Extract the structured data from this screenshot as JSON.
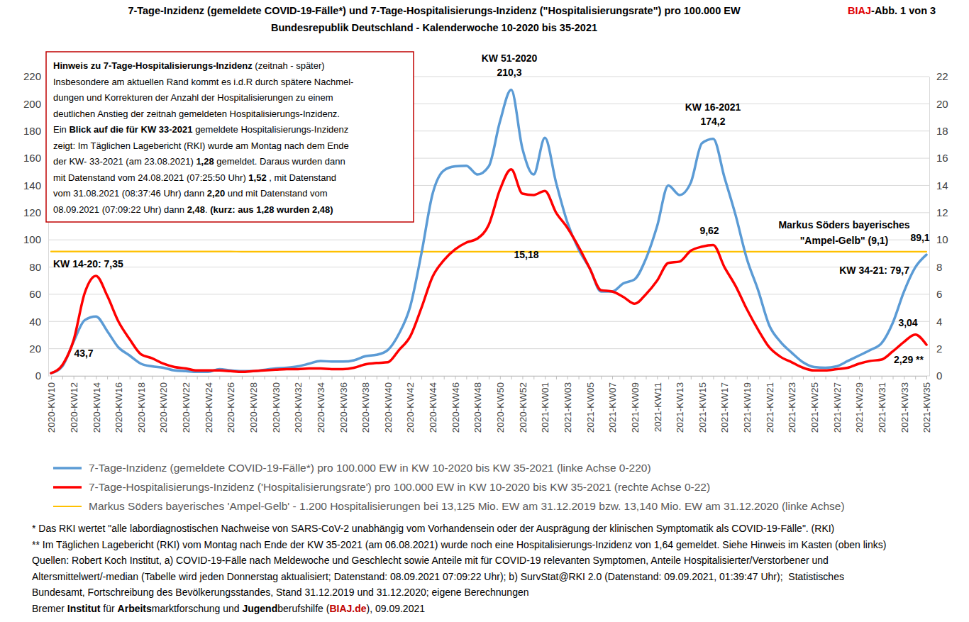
{
  "chart_data": {
    "type": "line",
    "title": "7-Tage-Inzidenz (gemeldete COVID-19-Fälle*) und 7-Tage-Hospitalisierungs-Inzidenz (\"Hospitalisierungsrate\") pro 100.000 EW",
    "subtitle": "Bundesrepublik Deutschland - Kalenderwoche 10-2020 bis 35-2021",
    "corner_label": [
      {
        "text": "BIAJ",
        "bold": true,
        "color": "#e00000"
      },
      {
        "text": "-Abb. 1 von 3",
        "bold": true
      }
    ],
    "categories": [
      "2020-KW10",
      null,
      "2020-KW12",
      null,
      "2020-KW14",
      null,
      "2020-KW16",
      null,
      "2020-KW18",
      null,
      "2020-KW20",
      null,
      "2020-KW22",
      null,
      "2020-KW24",
      null,
      "2020-KW26",
      null,
      "2020-KW28",
      null,
      "2020-KW30",
      null,
      "2020-KW32",
      null,
      "2020-KW34",
      null,
      "2020-KW36",
      null,
      "2020-KW38",
      null,
      "2020-KW40",
      null,
      "2020-KW42",
      null,
      "2020-KW44",
      null,
      "2020-KW46",
      null,
      "2020-KW48",
      null,
      "2020-KW50",
      null,
      "2020-KW52",
      null,
      "2021-KW01",
      null,
      "2021-KW03",
      null,
      "2021-KW05",
      null,
      "2021-KW07",
      null,
      "2021-KW09",
      null,
      "2021-KW11",
      null,
      "2021-KW13",
      null,
      "2021-KW15",
      null,
      "2021-KW17",
      null,
      "2021-KW19",
      null,
      "2021-KW21",
      null,
      "2021-KW23",
      null,
      "2021-KW25",
      null,
      "2021-KW27",
      null,
      "2021-KW29",
      null,
      "2021-KW31",
      null,
      "2021-KW33",
      null,
      "2021-KW35"
    ],
    "series": [
      {
        "name": "7-Tage-Inzidenz (gemeldete COVID-19-Fälle*) pro 100.000 EW in KW 10-2020 bis KW 35-2021 (linke Achse 0-220)",
        "color": "#5b9bd5",
        "axis": "y",
        "values": [
          2,
          7,
          25,
          41,
          43.7,
          33,
          21,
          15,
          9,
          7,
          6,
          4,
          3.5,
          3,
          3,
          5,
          4,
          3.5,
          3.5,
          4.5,
          5.5,
          6,
          7,
          9,
          11,
          10.5,
          10.5,
          11.5,
          14.5,
          15.5,
          19,
          31,
          51,
          90,
          134,
          151,
          154,
          154.5,
          148,
          154,
          187,
          210.3,
          167,
          148,
          175,
          142,
          113,
          93,
          79,
          62,
          62,
          68,
          71,
          86,
          110,
          140,
          133,
          142,
          171,
          174.2,
          146,
          118,
          86,
          63,
          37,
          25,
          17,
          10,
          6.5,
          6,
          7,
          11,
          15,
          19,
          24,
          39,
          62,
          79.7,
          89.1
        ]
      },
      {
        "name": "7-Tage-Hospitalisierungs-Inzidenz ('Hospitalisierungsrate') pro 100.000 EW in KW 10-2020 bis KW 35-2021 (rechte Achse 0-22)",
        "color": "#ff0000",
        "axis": "y2",
        "values": [
          0.2,
          0.8,
          2.6,
          6.1,
          7.35,
          5.9,
          4.0,
          2.7,
          1.6,
          1.3,
          0.9,
          0.65,
          0.55,
          0.4,
          0.4,
          0.4,
          0.35,
          0.3,
          0.35,
          0.4,
          0.45,
          0.5,
          0.5,
          0.55,
          0.55,
          0.5,
          0.5,
          0.6,
          0.85,
          0.95,
          1.0,
          1.9,
          2.9,
          5.0,
          7.3,
          8.5,
          9.3,
          9.8,
          10.1,
          11.1,
          13.7,
          15.18,
          13.4,
          13.3,
          13.6,
          12.0,
          10.9,
          9.5,
          7.9,
          6.3,
          6.2,
          5.8,
          5.3,
          6.0,
          7.0,
          8.3,
          8.4,
          9.2,
          9.5,
          9.62,
          8.0,
          6.6,
          4.9,
          3.4,
          2.1,
          1.4,
          1.0,
          0.6,
          0.4,
          0.4,
          0.5,
          0.6,
          0.9,
          1.1,
          1.2,
          1.8,
          2.5,
          3.04,
          2.29
        ]
      },
      {
        "name": "Markus Söders bayerisches 'Ampel-Gelb' - 1.200 Hospitalisierungen bei 13,125 Mio. EW am 31.12.2019 bzw. 13,140 Mio. EW am 31.12.2020 (linke Achse)",
        "color": "#ffc000",
        "axis": "y",
        "values": [
          91.4,
          91.4,
          91.4,
          91.4,
          91.4,
          91.4,
          91.4,
          91.4,
          91.4,
          91.4,
          91.4,
          91.4,
          91.4,
          91.4,
          91.4,
          91.4,
          91.4,
          91.3,
          91.3,
          91.3,
          91.3,
          91.3,
          91.3,
          91.3,
          91.3,
          91.3,
          91.3,
          91.3,
          91.3,
          91.3,
          91.3,
          91.3,
          91.3,
          91.3,
          91.3,
          91.3,
          91.3,
          91.3,
          91.3,
          91.3,
          91.3,
          91.3,
          91.3,
          91.3,
          91.3,
          91.3,
          91.3,
          91.3,
          91.3,
          91.3,
          91.3,
          91.3,
          91.3,
          91.3,
          91.3,
          91.3,
          91.3,
          91.3,
          91.3,
          91.3,
          91.3,
          91.3,
          91.3,
          91.3,
          91.3,
          91.3,
          91.3,
          91.3,
          91.3,
          91.3,
          91.3,
          91.3,
          91.3,
          91.3,
          91.3,
          91.3,
          91.3,
          91.3,
          91.3
        ]
      }
    ],
    "ylim": [
      0,
      220
    ],
    "yticks": [
      0,
      20,
      40,
      60,
      80,
      100,
      120,
      140,
      160,
      180,
      200,
      220
    ],
    "y2lim": [
      0,
      22
    ],
    "y2ticks": [
      0,
      2,
      4,
      6,
      8,
      10,
      12,
      14,
      16,
      18,
      20,
      22
    ],
    "grid": true,
    "legend": "bottom",
    "annotations": [
      "KW 51-2020",
      "210,3",
      "15,18",
      "KW 16-2021",
      "174,2",
      "9,62",
      "KW 14-20: 7,35",
      "43,7",
      "Markus Söders bayerisches",
      "\"Ampel-Gelb\" (9,1)",
      "89,1",
      "KW 34-21: 79,7",
      "3,04",
      "2,29 **"
    ],
    "note_box": {
      "lines": [
        [
          {
            "text": "Hinweis zu 7-Tage-Hospitalisierungs-Inzidenz",
            "bold": true
          },
          {
            "text": " (zeitnah - später)"
          }
        ],
        [
          {
            "text": "Insbesondere am aktuellen Rand kommt es i.d.R durch spätere Nachmel-"
          }
        ],
        [
          {
            "text": "dungen und Korrekturen der Anzahl der Hospitalisierungen zu einem"
          }
        ],
        [
          {
            "text": "deutlichen Anstieg der zeitnah gemeldeten Hospitalisierungs-Inzidenz."
          }
        ],
        [
          {
            "text": "Ein "
          },
          {
            "text": "Blick auf die für KW 33-2021",
            "bold": true
          },
          {
            "text": " gemeldete Hospitalisierungs-Inzidenz"
          }
        ],
        [
          {
            "text": "zeigt: Im Täglichen Lagebericht (RKI) wurde am Montag nach dem Ende"
          }
        ],
        [
          {
            "text": "der KW- 33-2021 (am 23.08.2021) "
          },
          {
            "text": "1,28",
            "bold": true
          },
          {
            "text": " gemeldet. Daraus wurden dann"
          }
        ],
        [
          {
            "text": "mit Datenstand vom 24.08.2021 (07:25:50 Uhr) "
          },
          {
            "text": "1,52",
            "bold": true
          },
          {
            "text": " , mit Datenstand"
          }
        ],
        [
          {
            "text": "vom 31.08.2021 (08:37:46 Uhr) dann "
          },
          {
            "text": "2,20",
            "bold": true
          },
          {
            "text": " und mit Datenstand vom"
          }
        ],
        [
          {
            "text": "08.09.2021 (07:09:22 Uhr) dann "
          },
          {
            "text": "2,48",
            "bold": true
          },
          {
            "text": ". "
          },
          {
            "text": "(kurz: aus 1,28 wurden 2,48)",
            "bold": true
          }
        ]
      ]
    },
    "footnotes": [
      [
        {
          "text": "* Das RKI wertet \"alle labordiagnostischen Nachweise von SARS-CoV-2 unabhängig vom Vorhandensein oder der Ausprägung der klinischen Symptomatik als COVID-19-Fälle\". (RKI)"
        }
      ],
      [
        {
          "text": "** Im Täglichen Lagebericht (RKI) vom Montag nach Ende der KW 35-2021 (am 06.08.2021) wurde noch eine Hospitalisierungs-Inzidenz von 1,64 gemeldet. Siehe Hinweis im Kasten (oben links)"
        }
      ],
      [
        {
          "text": "Quellen: Robert Koch Institut, a) COVID-19-Fälle nach Meldewoche und Geschlecht sowie Anteile mit für COVID-19 relevanten Symptomen, Anteile Hospitalisierter/Verstorbener und"
        }
      ],
      [
        {
          "text": "Altersmittelwert/-median (Tabelle wird jeden Donnerstag aktualisiert; Datenstand: 08.09.2021 07:09:22 Uhr); b) SurvStat@RKI 2.0 (Datenstand: 09.09.2021, 01:39:47 Uhr);  Statistisches"
        }
      ],
      [
        {
          "text": "Bundesamt, Fortschreibung des Bevölkerungsstandes, Stand 31.12.2019 und 31.12.2020; eigene Berechnungen"
        }
      ],
      [
        {
          "text": "Bremer "
        },
        {
          "text": "Institut",
          "bold": true
        },
        {
          "text": " für "
        },
        {
          "text": "Arbeits",
          "bold": true
        },
        {
          "text": "marktforschung und "
        },
        {
          "text": "Jugend",
          "bold": true
        },
        {
          "text": "berufshilfe ("
        },
        {
          "text": "BIAJ.de",
          "bold": true,
          "color": "#c00000"
        },
        {
          "text": "), 09.09.2021"
        }
      ]
    ]
  }
}
